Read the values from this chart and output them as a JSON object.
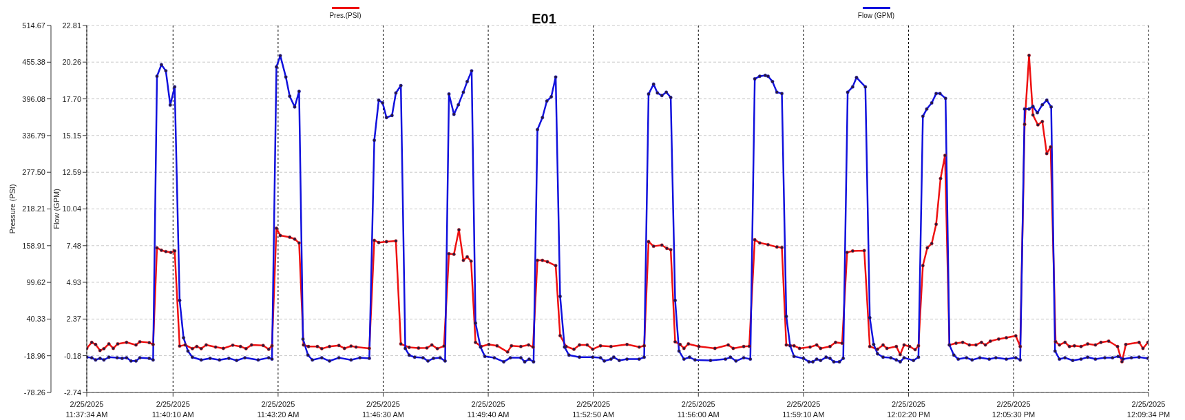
{
  "chart_data": {
    "type": "line",
    "title": "E01",
    "ylabel": "Flow (GPM)",
    "y2label": "Pressure (PSI)",
    "xlim": [
      "2025-02-25T11:37:34",
      "2025-02-25T12:09:34"
    ],
    "xticks": [
      {
        "value": "2025-02-25T11:37:34",
        "label": "2/25/2025 11:37:34 AM"
      },
      {
        "value": "2025-02-25T11:40:10",
        "label": "2/25/2025 11:40:10 AM"
      },
      {
        "value": "2025-02-25T11:43:20",
        "label": "2/25/2025 11:43:20 AM"
      },
      {
        "value": "2025-02-25T11:46:30",
        "label": "2/25/2025 11:46:30 AM"
      },
      {
        "value": "2025-02-25T11:49:40",
        "label": "2/25/2025 11:49:40 AM"
      },
      {
        "value": "2025-02-25T11:52:50",
        "label": "2/25/2025 11:52:50 AM"
      },
      {
        "value": "2025-02-25T11:56:00",
        "label": "2/25/2025 11:56:00 AM"
      },
      {
        "value": "2025-02-25T11:59:10",
        "label": "2/25/2025 11:59:10 AM"
      },
      {
        "value": "2025-02-25T12:02:20",
        "label": "2/25/2025 12:02:20 PM"
      },
      {
        "value": "2025-02-25T12:05:30",
        "label": "2/25/2025 12:05:30 PM"
      },
      {
        "value": "2025-02-25T12:09:34",
        "label": "2/25/2025 12:09:34 PM"
      }
    ],
    "ylim": [
      -2.74,
      22.81
    ],
    "yticks": [
      -2.74,
      -0.18,
      2.37,
      4.93,
      7.48,
      10.04,
      12.59,
      15.15,
      {
        "value": 17.7,
        "label": "17.70"
      },
      20.26,
      22.81
    ],
    "y2lim": [
      -78.26,
      514.67
    ],
    "y2ticks": [
      -78.26,
      -18.96,
      40.33,
      99.62,
      158.91,
      218.21,
      {
        "value": 277.5,
        "label": "277.50"
      },
      336.79,
      396.08,
      455.38,
      514.67
    ],
    "grid": true,
    "legend": "top",
    "marker": "circle",
    "line_style": "solid",
    "series": [
      {
        "name": "Pres.(PSI)",
        "color": "#ee1111",
        "axis": "y",
        "x": [
          "2025-02-25T11:37:34",
          "2025-02-25T11:37:43",
          "2025-02-25T11:37:50",
          "2025-02-25T11:37:58",
          "2025-02-25T11:38:05",
          "2025-02-25T11:38:14",
          "2025-02-25T11:38:22",
          "2025-02-25T11:38:30",
          "2025-02-25T11:38:46",
          "2025-02-25T11:39:03",
          "2025-02-25T11:39:10",
          "2025-02-25T11:39:27",
          "2025-02-25T11:39:34",
          "2025-02-25T11:39:41",
          "2025-02-25T11:39:49",
          "2025-02-25T11:39:57",
          "2025-02-25T11:40:06",
          "2025-02-25T11:40:13",
          "2025-02-25T11:40:22",
          "2025-02-25T11:40:32",
          "2025-02-25T11:40:45",
          "2025-02-25T11:40:53",
          "2025-02-25T11:41:01",
          "2025-02-25T11:41:10",
          "2025-02-25T11:41:27",
          "2025-02-25T11:41:41",
          "2025-02-25T11:41:58",
          "2025-02-25T11:42:12",
          "2025-02-25T11:42:22",
          "2025-02-25T11:42:32",
          "2025-02-25T11:42:53",
          "2025-02-25T11:43:03",
          "2025-02-25T11:43:09",
          "2025-02-25T11:43:17",
          "2025-02-25T11:43:24",
          "2025-02-25T11:43:41",
          "2025-02-25T11:43:50",
          "2025-02-25T11:43:58",
          "2025-02-25T11:44:06",
          "2025-02-25T11:44:15",
          "2025-02-25T11:44:31",
          "2025-02-25T11:44:39",
          "2025-02-25T11:44:53",
          "2025-02-25T11:45:10",
          "2025-02-25T11:45:20",
          "2025-02-25T11:45:32",
          "2025-02-25T11:45:41",
          "2025-02-25T11:46:05",
          "2025-02-25T11:46:14",
          "2025-02-25T11:46:22",
          "2025-02-25T11:46:36",
          "2025-02-25T11:46:53",
          "2025-02-25T11:47:02",
          "2025-02-25T11:47:17",
          "2025-02-25T11:47:34",
          "2025-02-25T11:47:49",
          "2025-02-25T11:47:58",
          "2025-02-25T11:48:08",
          "2025-02-25T11:48:20",
          "2025-02-25T11:48:29",
          "2025-02-25T11:48:38",
          "2025-02-25T11:48:47",
          "2025-02-25T11:48:55",
          "2025-02-25T11:49:02",
          "2025-02-25T11:49:09",
          "2025-02-25T11:49:17",
          "2025-02-25T11:49:27",
          "2025-02-25T11:49:41",
          "2025-02-25T11:49:56",
          "2025-02-25T11:50:15",
          "2025-02-25T11:50:22",
          "2025-02-25T11:50:39",
          "2025-02-25T11:50:53",
          "2025-02-25T11:51:01",
          "2025-02-25T11:51:09",
          "2025-02-25T11:51:18",
          "2025-02-25T11:51:27",
          "2025-02-25T11:51:42",
          "2025-02-25T11:51:50",
          "2025-02-25T11:52:01",
          "2025-02-25T11:52:15",
          "2025-02-25T11:52:25",
          "2025-02-25T11:52:39",
          "2025-02-25T11:52:49",
          "2025-02-25T11:53:03",
          "2025-02-25T11:53:22",
          "2025-02-25T11:53:51",
          "2025-02-25T11:54:13",
          "2025-02-25T11:54:22",
          "2025-02-25T11:54:30",
          "2025-02-25T11:54:39",
          "2025-02-25T11:54:54",
          "2025-02-25T11:55:03",
          "2025-02-25T11:55:10",
          "2025-02-25T11:55:18",
          "2025-02-25T11:55:27",
          "2025-02-25T11:55:34",
          "2025-02-25T11:55:42",
          "2025-02-25T11:56:01",
          "2025-02-25T11:56:30",
          "2025-02-25T11:56:54",
          "2025-02-25T11:57:03",
          "2025-02-25T11:57:22",
          "2025-02-25T11:57:32",
          "2025-02-25T11:57:42",
          "2025-02-25T11:57:51",
          "2025-02-25T11:58:06",
          "2025-02-25T11:58:22",
          "2025-02-25T11:58:31",
          "2025-02-25T11:58:39",
          "2025-02-25T11:58:53",
          "2025-02-25T11:59:03",
          "2025-02-25T11:59:22",
          "2025-02-25T11:59:34",
          "2025-02-25T11:59:41",
          "2025-02-25T11:59:58",
          "2025-02-25T12:00:08",
          "2025-02-25T12:00:20",
          "2025-02-25T12:00:29",
          "2025-02-25T12:00:39",
          "2025-02-25T12:01:00",
          "2025-02-25T12:01:10",
          "2025-02-25T12:01:24",
          "2025-02-25T12:01:34",
          "2025-02-25T12:01:41",
          "2025-02-25T12:01:58",
          "2025-02-25T12:02:05",
          "2025-02-25T12:02:12",
          "2025-02-25T12:02:22",
          "2025-02-25T12:02:32",
          "2025-02-25T12:02:38",
          "2025-02-25T12:02:46",
          "2025-02-25T12:02:54",
          "2025-02-25T12:03:02",
          "2025-02-25T12:03:10",
          "2025-02-25T12:03:18",
          "2025-02-25T12:03:26",
          "2025-02-25T12:03:34",
          "2025-02-25T12:03:46",
          "2025-02-25T12:03:58",
          "2025-02-25T12:04:10",
          "2025-02-25T12:04:22",
          "2025-02-25T12:04:32",
          "2025-02-25T12:04:39",
          "2025-02-25T12:04:48",
          "2025-02-25T12:05:03",
          "2025-02-25T12:05:17",
          "2025-02-25T12:05:34",
          "2025-02-25T12:05:42",
          "2025-02-25T12:05:50",
          "2025-02-25T12:05:58",
          "2025-02-25T12:06:05",
          "2025-02-25T12:06:14",
          "2025-02-25T12:06:22",
          "2025-02-25T12:06:30",
          "2025-02-25T12:06:37",
          "2025-02-25T12:06:46",
          "2025-02-25T12:06:53",
          "2025-02-25T12:07:03",
          "2025-02-25T12:07:11",
          "2025-02-25T12:07:20",
          "2025-02-25T12:07:32",
          "2025-02-25T12:07:44",
          "2025-02-25T12:07:58",
          "2025-02-25T12:08:08",
          "2025-02-25T12:08:22",
          "2025-02-25T12:08:38",
          "2025-02-25T12:08:46",
          "2025-02-25T12:08:53",
          "2025-02-25T12:09:17",
          "2025-02-25T12:09:24",
          "2025-02-25T12:09:33"
        ],
        "values": [
          0.33,
          0.75,
          0.6,
          0.18,
          0.31,
          0.64,
          0.33,
          0.64,
          0.75,
          0.57,
          0.79,
          0.73,
          0.6,
          7.33,
          7.16,
          7.07,
          7.01,
          7.11,
          0.49,
          0.57,
          0.31,
          0.46,
          0.31,
          0.57,
          0.42,
          0.33,
          0.55,
          0.46,
          0.31,
          0.57,
          0.53,
          0.27,
          0.51,
          8.69,
          8.19,
          8.07,
          7.94,
          7.67,
          0.57,
          0.46,
          0.46,
          0.31,
          0.46,
          0.53,
          0.33,
          0.49,
          0.42,
          0.33,
          7.85,
          7.7,
          7.76,
          7.81,
          0.64,
          0.4,
          0.35,
          0.36,
          0.57,
          0.31,
          0.49,
          6.92,
          6.88,
          8.59,
          6.46,
          6.7,
          6.4,
          0.75,
          0.46,
          0.6,
          0.51,
          0.08,
          0.51,
          0.46,
          0.57,
          0.42,
          6.46,
          6.46,
          6.36,
          6.09,
          1.22,
          0.46,
          0.27,
          0.57,
          0.57,
          0.27,
          0.51,
          0.46,
          0.6,
          0.42,
          0.51,
          7.76,
          7.44,
          7.52,
          7.29,
          7.2,
          0.79,
          0.6,
          0.33,
          0.64,
          0.46,
          0.33,
          0.57,
          0.33,
          0.46,
          0.48,
          7.89,
          7.67,
          7.55,
          7.39,
          7.35,
          0.57,
          0.51,
          0.33,
          0.42,
          0.57,
          0.33,
          0.46,
          0.75,
          0.69,
          7.01,
          7.11,
          7.14,
          0.46,
          0.27,
          0.57,
          0.33,
          0.46,
          -0.1,
          0.57,
          0.46,
          0.24,
          0.51,
          6.09,
          7.33,
          7.63,
          8.97,
          12.16,
          13.76,
          0.57,
          0.69,
          0.75,
          0.57,
          0.57,
          0.75,
          0.57,
          0.83,
          0.98,
          1.07,
          1.2,
          0.46,
          15.93,
          20.73,
          16.58,
          15.89,
          16.12,
          13.89,
          14.35,
          0.79,
          0.57,
          0.75,
          0.46,
          0.51,
          0.46,
          0.64,
          0.57,
          0.75,
          0.83,
          0.46,
          -0.6,
          0.6,
          0.75,
          0.33,
          0.75
        ]
      },
      {
        "name": "Flow (GPM)",
        "color": "#1111dd",
        "axis": "y2",
        "x": [
          "2025-02-25T11:37:34",
          "2025-02-25T11:37:43",
          "2025-02-25T11:37:50",
          "2025-02-25T11:37:58",
          "2025-02-25T11:38:05",
          "2025-02-25T11:38:14",
          "2025-02-25T11:38:29",
          "2025-02-25T11:38:38",
          "2025-02-25T11:38:46",
          "2025-02-25T11:38:54",
          "2025-02-25T11:39:03",
          "2025-02-25T11:39:10",
          "2025-02-25T11:39:27",
          "2025-02-25T11:39:34",
          "2025-02-25T11:39:41",
          "2025-02-25T11:39:49",
          "2025-02-25T11:39:57",
          "2025-02-25T11:40:05",
          "2025-02-25T11:40:13",
          "2025-02-25T11:40:22",
          "2025-02-25T11:40:29",
          "2025-02-25T11:40:37",
          "2025-02-25T11:40:45",
          "2025-02-25T11:41:01",
          "2025-02-25T11:41:17",
          "2025-02-25T11:41:34",
          "2025-02-25T11:41:51",
          "2025-02-25T11:42:05",
          "2025-02-25T11:42:20",
          "2025-02-25T11:42:44",
          "2025-02-25T11:43:03",
          "2025-02-25T11:43:09",
          "2025-02-25T11:43:17",
          "2025-02-25T11:43:24",
          "2025-02-25T11:43:34",
          "2025-02-25T11:43:41",
          "2025-02-25T11:43:50",
          "2025-02-25T11:43:58",
          "2025-02-25T11:44:05",
          "2025-02-25T11:44:14",
          "2025-02-25T11:44:22",
          "2025-02-25T11:44:39",
          "2025-02-25T11:44:53",
          "2025-02-25T11:45:10",
          "2025-02-25T11:45:32",
          "2025-02-25T11:45:48",
          "2025-02-25T11:46:05",
          "2025-02-25T11:46:14",
          "2025-02-25T11:46:22",
          "2025-02-25T11:46:29",
          "2025-02-25T11:46:36",
          "2025-02-25T11:46:46",
          "2025-02-25T11:46:53",
          "2025-02-25T11:47:02",
          "2025-02-25T11:47:10",
          "2025-02-25T11:47:17",
          "2025-02-25T11:47:27",
          "2025-02-25T11:47:42",
          "2025-02-25T11:47:51",
          "2025-02-25T11:48:01",
          "2025-02-25T11:48:13",
          "2025-02-25T11:48:22",
          "2025-02-25T11:48:29",
          "2025-02-25T11:48:38",
          "2025-02-25T11:48:46",
          "2025-02-25T11:48:55",
          "2025-02-25T11:49:02",
          "2025-02-25T11:49:10",
          "2025-02-25T11:49:17",
          "2025-02-25T11:49:26",
          "2025-02-25T11:49:34",
          "2025-02-25T11:49:51",
          "2025-02-25T11:50:08",
          "2025-02-25T11:50:20",
          "2025-02-25T11:50:39",
          "2025-02-25T11:50:46",
          "2025-02-25T11:50:54",
          "2025-02-25T11:51:02",
          "2025-02-25T11:51:09",
          "2025-02-25T11:51:18",
          "2025-02-25T11:51:26",
          "2025-02-25T11:51:34",
          "2025-02-25T11:51:42",
          "2025-02-25T11:51:50",
          "2025-02-25T11:51:58",
          "2025-02-25T11:52:06",
          "2025-02-25T11:52:25",
          "2025-02-25T11:52:49",
          "2025-02-25T11:53:03",
          "2025-02-25T11:53:10",
          "2025-02-25T11:53:22",
          "2025-02-25T11:53:27",
          "2025-02-25T11:53:37",
          "2025-02-25T11:53:51",
          "2025-02-25T11:54:13",
          "2025-02-25T11:54:22",
          "2025-02-25T11:54:30",
          "2025-02-25T11:54:39",
          "2025-02-25T11:54:46",
          "2025-02-25T11:54:54",
          "2025-02-25T11:55:02",
          "2025-02-25T11:55:10",
          "2025-02-25T11:55:18",
          "2025-02-25T11:55:25",
          "2025-02-25T11:55:34",
          "2025-02-25T11:55:44",
          "2025-02-25T11:55:54",
          "2025-02-25T11:56:22",
          "2025-02-25T11:56:49",
          "2025-02-25T11:56:58",
          "2025-02-25T11:57:08",
          "2025-02-25T11:57:22",
          "2025-02-25T11:57:34",
          "2025-02-25T11:57:42",
          "2025-02-25T11:57:51",
          "2025-02-25T11:58:01",
          "2025-02-25T11:58:06",
          "2025-02-25T11:58:14",
          "2025-02-25T11:58:22",
          "2025-02-25T11:58:31",
          "2025-02-25T11:58:39",
          "2025-02-25T11:58:46",
          "2025-02-25T11:58:53",
          "2025-02-25T11:59:10",
          "2025-02-25T11:59:20",
          "2025-02-25T11:59:27",
          "2025-02-25T11:59:34",
          "2025-02-25T11:59:41",
          "2025-02-25T11:59:51",
          "2025-02-25T11:59:58",
          "2025-02-25T12:00:05",
          "2025-02-25T12:00:15",
          "2025-02-25T12:00:22",
          "2025-02-25T12:00:30",
          "2025-02-25T12:00:39",
          "2025-02-25T12:00:46",
          "2025-02-25T12:01:02",
          "2025-02-25T12:01:10",
          "2025-02-25T12:01:17",
          "2025-02-25T12:01:24",
          "2025-02-25T12:01:34",
          "2025-02-25T12:01:48",
          "2025-02-25T12:01:58",
          "2025-02-25T12:02:05",
          "2025-02-25T12:02:12",
          "2025-02-25T12:02:29",
          "2025-02-25T12:02:38",
          "2025-02-25T12:02:46",
          "2025-02-25T12:02:53",
          "2025-02-25T12:03:02",
          "2025-02-25T12:03:10",
          "2025-02-25T12:03:17",
          "2025-02-25T12:03:27",
          "2025-02-25T12:03:34",
          "2025-02-25T12:03:42",
          "2025-02-25T12:03:50",
          "2025-02-25T12:04:05",
          "2025-02-25T12:04:15",
          "2025-02-25T12:04:29",
          "2025-02-25T12:04:46",
          "2025-02-25T12:04:58",
          "2025-02-25T12:05:17",
          "2025-02-25T12:05:34",
          "2025-02-25T12:05:42",
          "2025-02-25T12:05:50",
          "2025-02-25T12:05:58",
          "2025-02-25T12:06:05",
          "2025-02-25T12:06:13",
          "2025-02-25T12:06:22",
          "2025-02-25T12:06:30",
          "2025-02-25T12:06:38",
          "2025-02-25T12:06:45",
          "2025-02-25T12:06:53",
          "2025-02-25T12:07:03",
          "2025-02-25T12:07:17",
          "2025-02-25T12:07:32",
          "2025-02-25T12:07:44",
          "2025-02-25T12:07:58",
          "2025-02-25T12:08:15",
          "2025-02-25T12:08:29",
          "2025-02-25T12:08:39",
          "2025-02-25T12:08:48",
          "2025-02-25T12:09:03",
          "2025-02-25T12:09:17",
          "2025-02-25T12:09:33"
        ],
        "values": [
          -21.3,
          -22.2,
          -25.7,
          -23.1,
          -25.7,
          -21.3,
          -22.2,
          -23.1,
          -22.2,
          -27.4,
          -27.4,
          -22.2,
          -23.1,
          -25.7,
          432.7,
          451.3,
          441.4,
          386.2,
          415.5,
          70.5,
          10.1,
          -11.4,
          -21.3,
          -25.7,
          -23.1,
          -25.7,
          -23.1,
          -26.5,
          -22.2,
          -25.7,
          -22.2,
          -24.4,
          447.8,
          465.9,
          431.4,
          400.4,
          383.1,
          408.1,
          8.0,
          -17.9,
          -25.7,
          -22.2,
          -27.4,
          -22.2,
          -25.7,
          -22.2,
          -23.1,
          329.2,
          393.9,
          389.6,
          365.9,
          369.3,
          405.6,
          417.6,
          -7.1,
          -17.9,
          -21.3,
          -22.2,
          -27.4,
          -23.1,
          -22.2,
          -27.4,
          403.9,
          371.1,
          386.6,
          406.9,
          424.1,
          441.4,
          33.9,
          -4.9,
          -20.0,
          -22.2,
          -28.7,
          -22.2,
          -22.2,
          -28.7,
          -24.4,
          -28.7,
          346.5,
          365.9,
          392.6,
          399.5,
          431.4,
          77.0,
          -4.9,
          -17.9,
          -21.3,
          -21.3,
          -22.2,
          -27.4,
          -24.4,
          -21.3,
          -26.5,
          -24.4,
          -24.4,
          -21.3,
          403.9,
          419.9,
          405.7,
          401.4,
          406.9,
          398.4,
          70.5,
          -11.4,
          -24.4,
          -21.3,
          -25.7,
          -26.5,
          -24.4,
          -21.3,
          -27.4,
          -22.2,
          -24.4,
          428.4,
          432.7,
          434.0,
          432.7,
          424.1,
          406.9,
          404.7,
          44.6,
          -2.8,
          -20.0,
          -23.1,
          -28.7,
          -28.7,
          -24.4,
          -26.5,
          -21.3,
          -23.1,
          -28.7,
          -28.7,
          -23.1,
          406.9,
          415.5,
          430.6,
          415.5,
          42.5,
          -0.6,
          -15.7,
          -21.3,
          -22.2,
          -25.7,
          -28.7,
          -22.2,
          -26.5,
          -21.3,
          368.0,
          379.7,
          389.6,
          404.7,
          404.7,
          396.9,
          -1.5,
          -17.9,
          -24.4,
          -22.2,
          -25.7,
          -22.2,
          -24.4,
          -22.2,
          -24.4,
          -22.2,
          -25.7,
          379.7,
          379.7,
          384.0,
          373.7,
          386.6,
          393.9,
          383.1,
          -11.4,
          -24.4,
          -22.2,
          -26.5,
          -24.4,
          -21.3,
          -24.4,
          -22.2,
          -22.2,
          -20.0,
          -24.4,
          -22.2,
          -21.3,
          -23.1
        ]
      }
    ]
  }
}
